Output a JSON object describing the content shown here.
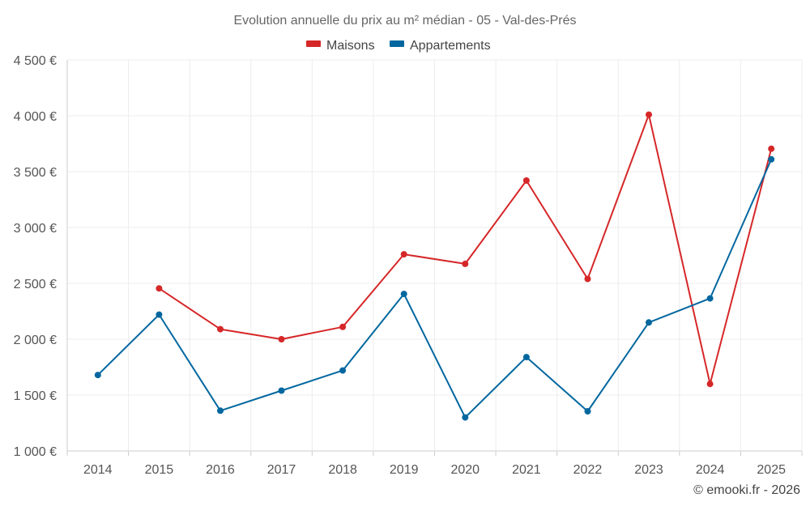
{
  "chart_data": {
    "type": "line",
    "title": "Evolution annuelle du prix au m² médian - 05 - Val-des-Prés",
    "xlabel": "",
    "ylabel": "",
    "categories": [
      "2014",
      "2015",
      "2016",
      "2017",
      "2018",
      "2019",
      "2020",
      "2021",
      "2022",
      "2023",
      "2024",
      "2025"
    ],
    "ylim": [
      1000,
      4500
    ],
    "yticks": [
      1000,
      1500,
      2000,
      2500,
      3000,
      3500,
      4000,
      4500
    ],
    "ytick_labels": [
      "1 000 €",
      "1 500 €",
      "2 000 €",
      "2 500 €",
      "3 000 €",
      "3 500 €",
      "4 000 €",
      "4 500 €"
    ],
    "grid": true,
    "legend_position": "top-center",
    "series": [
      {
        "name": "Maisons",
        "color": "#d62728",
        "values": [
          null,
          2455,
          2090,
          2000,
          2110,
          2760,
          2675,
          3420,
          2540,
          4010,
          1600,
          3705
        ]
      },
      {
        "name": "Appartements",
        "color": "#03679f",
        "values": [
          1680,
          2220,
          1360,
          1540,
          1720,
          2405,
          1300,
          1840,
          1355,
          2150,
          2365,
          3610
        ]
      }
    ]
  },
  "credit": "© emooki.fr - 2026"
}
